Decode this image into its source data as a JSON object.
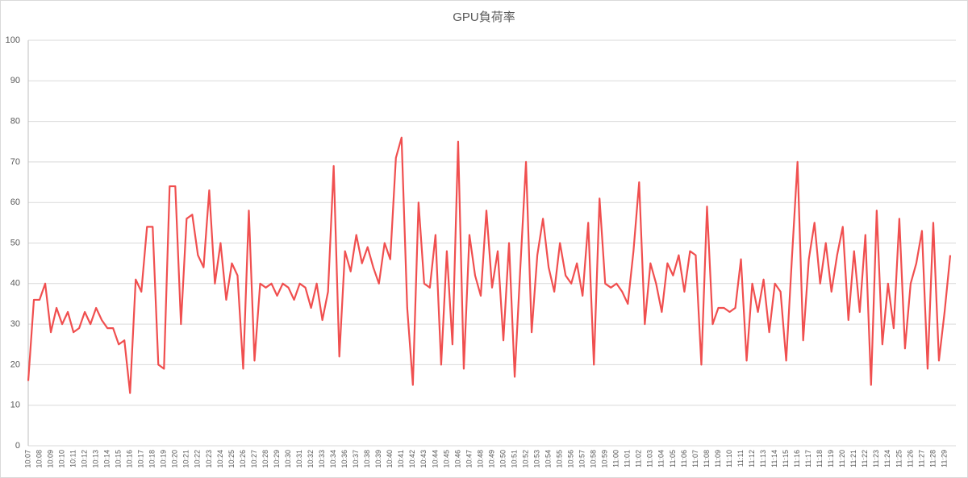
{
  "chart_data": {
    "type": "line",
    "title": "GPU負荷率",
    "categories": [
      "10:07",
      null,
      "10:08",
      null,
      "10:09",
      null,
      "10:10",
      null,
      "10:11",
      null,
      "10:12",
      null,
      "10:13",
      null,
      "10:14",
      null,
      "10:15",
      null,
      "10:16",
      null,
      "10:17",
      null,
      "10:18",
      null,
      "10:19",
      null,
      "10:20",
      null,
      "10:21",
      null,
      "10:22",
      null,
      "10:23",
      null,
      "10:24",
      null,
      "10:25",
      null,
      "10:26",
      null,
      "10:27",
      null,
      "10:28",
      null,
      "10:29",
      null,
      "10:30",
      null,
      "10:31",
      null,
      "10:32",
      null,
      "10:33",
      null,
      "10:34",
      null,
      "10:36",
      null,
      "10:37",
      null,
      "10:38",
      null,
      "10:39",
      null,
      "10:40",
      null,
      "10:41",
      null,
      "10:42",
      null,
      "10:43",
      null,
      "10:44",
      null,
      "10:45",
      null,
      "10:46",
      null,
      "10:47",
      null,
      "10:48",
      null,
      "10:49",
      null,
      "10:50",
      null,
      "10:51",
      null,
      "10:52",
      null,
      "10:53",
      null,
      "10:54",
      null,
      "10:55",
      null,
      "10:56",
      null,
      "10:57",
      null,
      "10:58",
      null,
      "10:59",
      null,
      "11:00",
      null,
      "11:01",
      null,
      "11:02",
      null,
      "11:03",
      null,
      "11:04",
      null,
      "11:05",
      null,
      "11:06",
      null,
      "11:07",
      null,
      "11:08",
      null,
      "11:09",
      null,
      "11:10",
      null,
      "11:11",
      null,
      "11:12",
      null,
      "11:13",
      null,
      "11:14",
      null,
      "11:15",
      null,
      "11:16",
      null,
      "11:17",
      null,
      "11:18",
      null,
      "11:19",
      null,
      "11:20",
      null,
      "11:21",
      null,
      "11:22",
      null,
      "11:23",
      null,
      "11:24",
      null,
      "11:25",
      null,
      "11:26",
      null,
      "11:27",
      null,
      "11:28",
      null,
      "11:29",
      null
    ],
    "values": [
      16,
      36,
      36,
      40,
      28,
      34,
      30,
      33,
      28,
      29,
      33,
      30,
      34,
      31,
      29,
      29,
      25,
      26,
      13,
      41,
      38,
      54,
      54,
      20,
      19,
      64,
      64,
      30,
      56,
      57,
      47,
      44,
      63,
      40,
      50,
      36,
      45,
      42,
      19,
      58,
      21,
      40,
      39,
      40,
      37,
      40,
      39,
      36,
      40,
      39,
      34,
      40,
      31,
      38,
      69,
      22,
      48,
      43,
      52,
      45,
      49,
      44,
      40,
      50,
      46,
      71,
      76,
      34,
      15,
      60,
      40,
      39,
      52,
      20,
      48,
      25,
      75,
      19,
      52,
      42,
      37,
      58,
      39,
      48,
      26,
      50,
      17,
      44,
      70,
      28,
      47,
      56,
      44,
      38,
      50,
      42,
      40,
      45,
      37,
      55,
      20,
      61,
      40,
      39,
      40,
      38,
      35,
      48,
      65,
      30,
      45,
      40,
      33,
      45,
      42,
      47,
      38,
      48,
      47,
      20,
      59,
      30,
      34,
      34,
      33,
      34,
      46,
      21,
      40,
      33,
      41,
      28,
      40,
      38,
      21,
      46,
      70,
      26,
      46,
      55,
      40,
      50,
      38,
      47,
      54,
      31,
      48,
      33,
      52,
      15,
      58,
      25,
      40,
      29,
      56,
      24,
      40,
      45,
      53,
      19,
      55,
      21,
      33,
      47
    ],
    "color": "#f04f4f",
    "ylim": [
      0,
      100
    ],
    "yticks": [
      0,
      10,
      20,
      30,
      40,
      50,
      60,
      70,
      80,
      90,
      100
    ],
    "grid": true
  }
}
